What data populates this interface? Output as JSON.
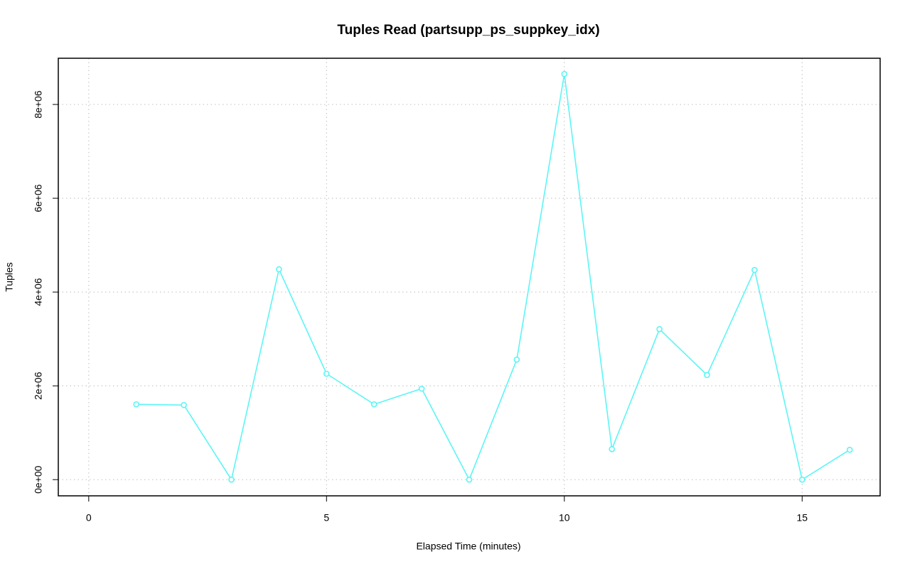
{
  "chart_data": {
    "type": "line",
    "title": "Tuples Read (partsupp_ps_suppkey_idx)",
    "x_label": "Elapsed Time (minutes)",
    "y_label": "Tuples",
    "x": [
      1,
      2,
      3,
      4,
      5,
      6,
      7,
      8,
      9,
      10,
      11,
      12,
      13,
      14,
      15,
      16
    ],
    "series": [
      {
        "color": "#5cf5f5",
        "values": [
          1606000,
          1590000,
          0,
          4485000,
          2258000,
          1606000,
          1940000,
          0,
          2560000,
          8650000,
          650000,
          3210000,
          2230000,
          4470000,
          0,
          636000
        ]
      }
    ],
    "xlim": [
      -0.64,
      16.64
    ],
    "xticks": [
      0,
      5,
      10,
      15
    ],
    "ylim": [
      -345600,
      8985600
    ],
    "yticks": [
      {
        "value": 0,
        "label": "0e+00"
      },
      {
        "value": 2000000,
        "label": "2e+06"
      },
      {
        "value": 4000000,
        "label": "4e+06"
      },
      {
        "value": 6000000,
        "label": "6e+06"
      },
      {
        "value": 8000000,
        "label": "8e+06"
      }
    ],
    "grid": true
  }
}
